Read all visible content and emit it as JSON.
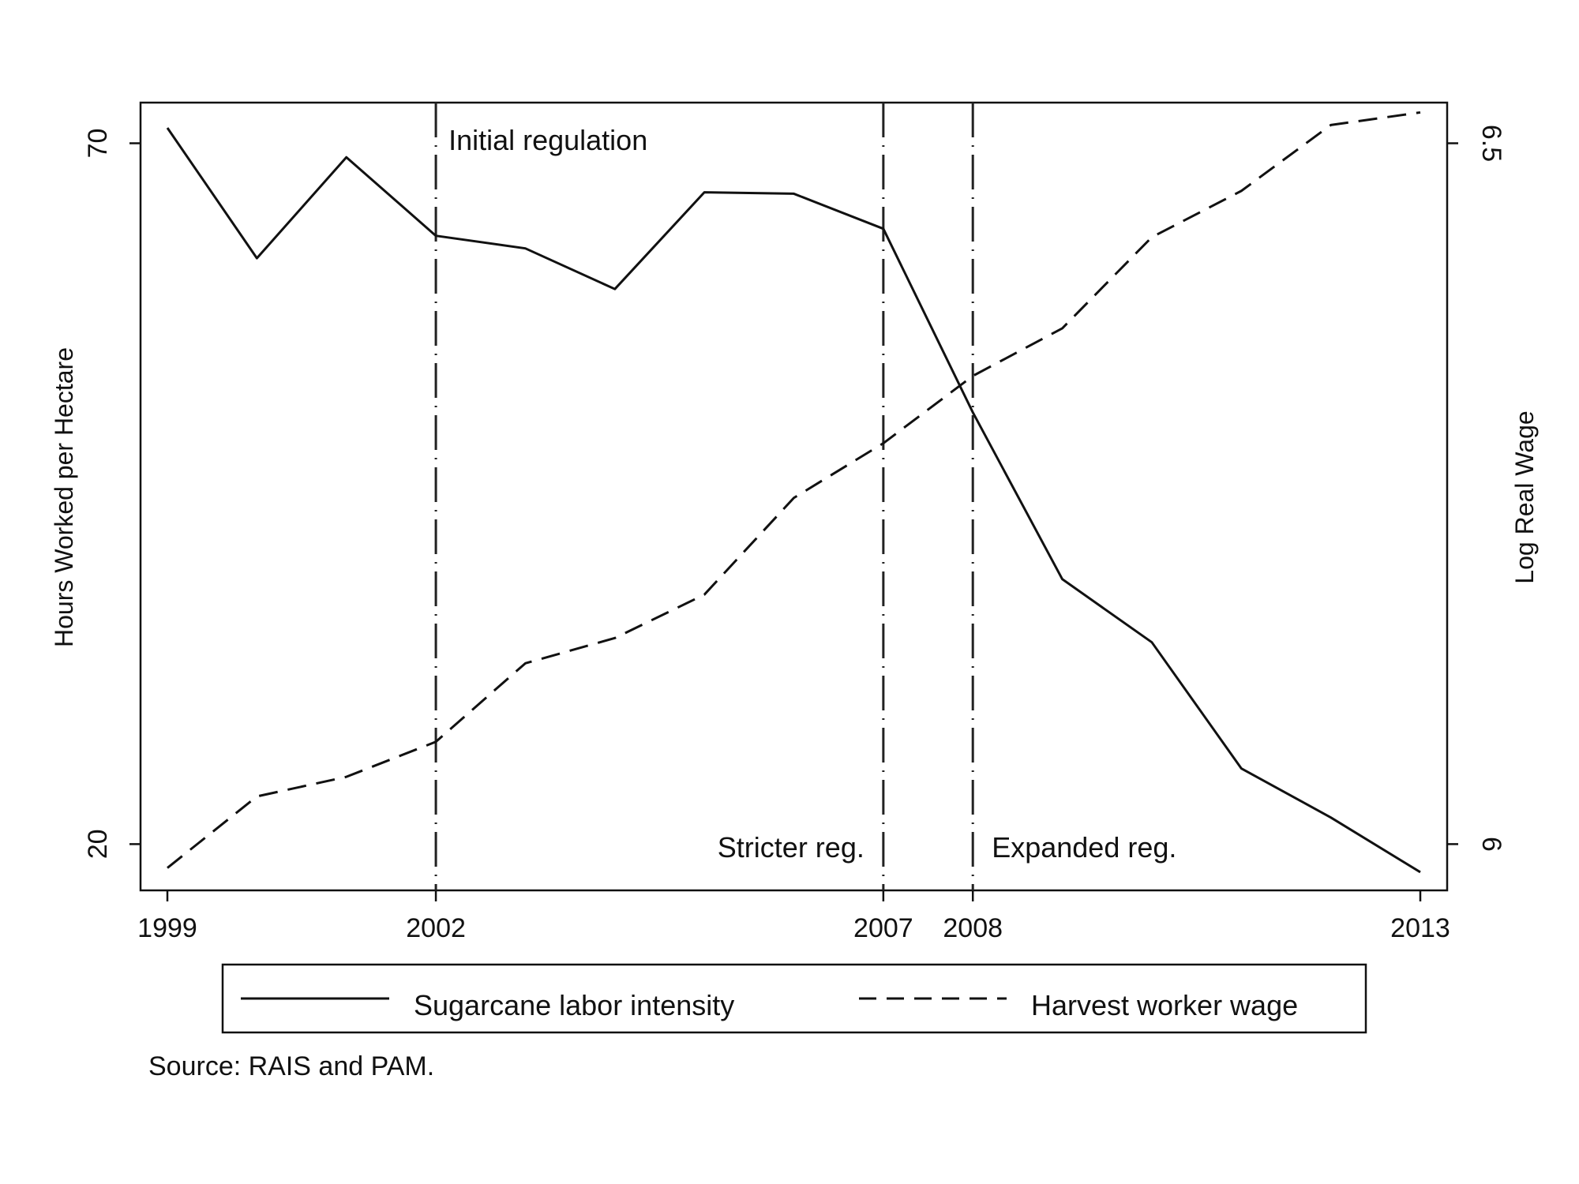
{
  "chart_data": {
    "type": "line",
    "title": "",
    "x": [
      1999,
      2000,
      2001,
      2002,
      2003,
      2004,
      2005,
      2006,
      2007,
      2008,
      2009,
      2010,
      2011,
      2012,
      2013
    ],
    "xlim": [
      1998.7,
      2013.3
    ],
    "x_ticks": [
      1999,
      2002,
      2007,
      2008,
      2013
    ],
    "x_tick_labels": [
      "1999",
      "2002",
      "2007",
      "2008",
      "2013"
    ],
    "left_axis": {
      "label": "Hours Worked per Hectare",
      "ylim": [
        16.7,
        72.9
      ],
      "ticks": [
        20,
        70
      ],
      "tick_labels": [
        "20",
        "70"
      ]
    },
    "right_axis": {
      "label": "Log Real Wage",
      "ylim": [
        5.967,
        6.529
      ],
      "ticks": [
        6,
        6.5
      ],
      "tick_labels": [
        "6",
        "6.5"
      ]
    },
    "series": [
      {
        "name": "Sugarcane labor intensity",
        "axis": "left",
        "style": "solid",
        "values": [
          71.1,
          61.8,
          69.0,
          63.4,
          62.5,
          59.6,
          66.5,
          66.4,
          63.9,
          50.8,
          38.9,
          34.4,
          25.4,
          21.9,
          18.0
        ]
      },
      {
        "name": "Harvest worker wage",
        "axis": "right",
        "style": "dashed",
        "values": [
          5.983,
          6.034,
          6.048,
          6.073,
          6.129,
          6.147,
          6.178,
          6.247,
          6.286,
          6.334,
          6.368,
          6.433,
          6.466,
          6.513,
          6.522
        ]
      }
    ],
    "vlines": [
      {
        "x": 2002,
        "label": "Initial regulation",
        "label_position": "top-right"
      },
      {
        "x": 2007,
        "label": "Stricter reg.",
        "label_position": "bottom-left"
      },
      {
        "x": 2008,
        "label": "Expanded reg.",
        "label_position": "bottom-right"
      }
    ],
    "legend": {
      "placement": "bottom",
      "entries": [
        "Sugarcane labor intensity",
        "Harvest worker wage"
      ]
    },
    "note": "Source: RAIS and PAM.",
    "grid": false
  }
}
